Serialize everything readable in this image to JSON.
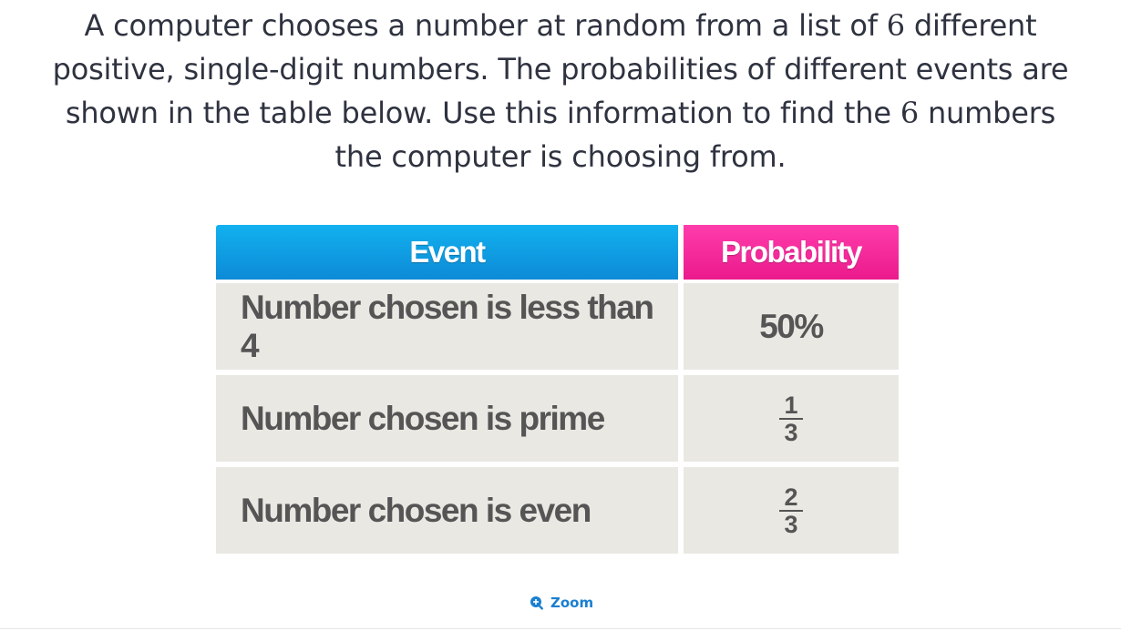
{
  "question": {
    "line1_a": "A computer chooses a number at random from a list of ",
    "line1_num": "6",
    "line1_b": " different",
    "line2": "positive, single-digit numbers. The probabilities of different events are",
    "line3_a": "shown in the table below. Use this information to find the ",
    "line3_num": "6",
    "line3_b": " numbers",
    "line4": "the computer is choosing from."
  },
  "table": {
    "headers": {
      "event": "Event",
      "probability": "Probability"
    },
    "rows": [
      {
        "event": "Number chosen is less than 4",
        "probability": "50%"
      },
      {
        "event": "Number chosen is prime",
        "numerator": "1",
        "denominator": "3"
      },
      {
        "event": "Number chosen is even",
        "numerator": "2",
        "denominator": "3"
      }
    ],
    "colors": {
      "event_header": "#0d9be2",
      "probability_header": "#f52a9c",
      "cell_background": "#e9e8e3"
    }
  },
  "zoom": {
    "label": "Zoom",
    "icon": "zoom-in-icon"
  }
}
